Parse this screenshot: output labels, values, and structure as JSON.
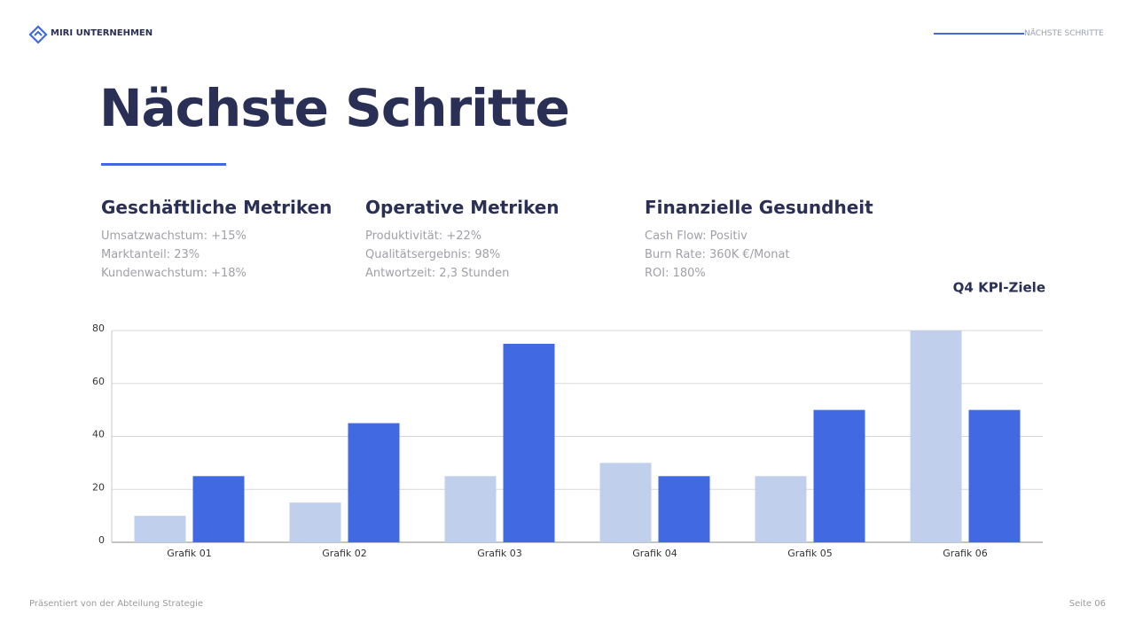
{
  "header": {
    "brand": "MIRI UNTERNEHMEN",
    "section": "NÄCHSTE SCHRITTE"
  },
  "title": "Nächste Schritte",
  "metrics": [
    {
      "heading": "Geschäftliche Metriken",
      "items": [
        "Umsatzwachstum: +15%",
        "Marktanteil: 23%",
        "Kundenwachstum: +18%"
      ]
    },
    {
      "heading": "Operative Metriken",
      "items": [
        "Produktivität: +22%",
        "Qualitätsergebnis: 98%",
        "Antwortzeit: 2,3 Stunden"
      ]
    },
    {
      "heading": "Finanzielle Gesundheit",
      "items": [
        "Cash Flow: Positiv",
        "Burn Rate: 360K €/Monat",
        "ROI: 180%"
      ]
    }
  ],
  "chart_data": {
    "type": "bar",
    "title": "Q4 KPI-Ziele",
    "categories": [
      "Grafik 01",
      "Grafik 02",
      "Grafik 03",
      "Grafik 04",
      "Grafik 05",
      "Grafik 06"
    ],
    "series": [
      {
        "color": "#c0cfec",
        "values": [
          10,
          15,
          25,
          30,
          25,
          80
        ]
      },
      {
        "color": "#4169e1",
        "values": [
          25,
          45,
          75,
          25,
          50,
          50
        ]
      }
    ],
    "ylim": [
      0,
      80
    ],
    "yticks": [
      0,
      20,
      40,
      60,
      80
    ],
    "grid": true
  },
  "footer": {
    "left": "Präsentiert von der Abteilung Strategie",
    "right": "Seite 06"
  }
}
